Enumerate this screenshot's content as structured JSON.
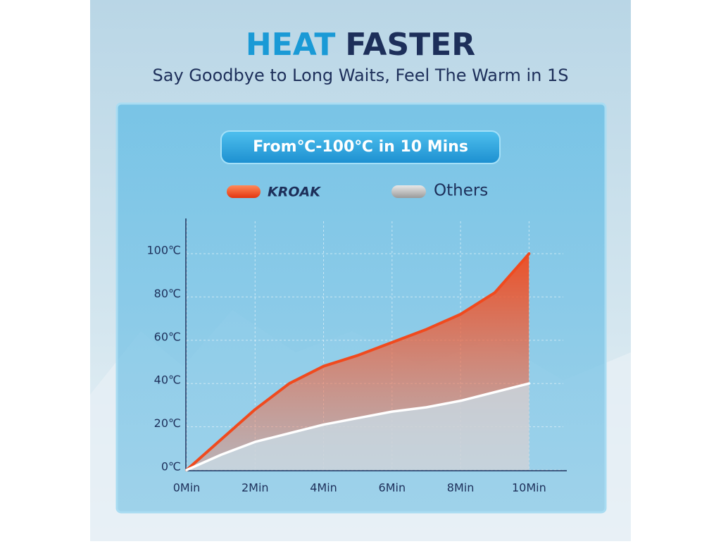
{
  "chart_data": {
    "type": "area-line",
    "title_parts": [
      "HEAT",
      "FASTER"
    ],
    "subtitle": "Say Goodbye to Long Waits, Feel The Warm in 1S",
    "badge": "From℃-100℃ in 10 Mins",
    "x": [
      0,
      1,
      2,
      3,
      4,
      5,
      6,
      7,
      8,
      9,
      10
    ],
    "series": [
      {
        "name": "KROAK",
        "color": "#f04a1e",
        "values": [
          0,
          14,
          28,
          40,
          48,
          53,
          59,
          65,
          72,
          82,
          100
        ]
      },
      {
        "name": "Others",
        "color": "#ffffff",
        "values": [
          0,
          7,
          13,
          17,
          21,
          24,
          27,
          29,
          32,
          36,
          40
        ]
      }
    ],
    "xlim": [
      0,
      11
    ],
    "ylim": [
      0,
      115
    ],
    "xticks": [
      {
        "value": 0,
        "label": "0Min"
      },
      {
        "value": 2,
        "label": "2Min"
      },
      {
        "value": 4,
        "label": "4Min"
      },
      {
        "value": 6,
        "label": "6Min"
      },
      {
        "value": 8,
        "label": "8Min"
      },
      {
        "value": 10,
        "label": "10Min"
      }
    ],
    "yticks": [
      {
        "value": 0,
        "label": "0℃"
      },
      {
        "value": 20,
        "label": "20℃"
      },
      {
        "value": 40,
        "label": "40℃"
      },
      {
        "value": 60,
        "label": "60℃"
      },
      {
        "value": 80,
        "label": "80℃"
      },
      {
        "value": 100,
        "label": "100℃"
      }
    ],
    "grid": true
  }
}
